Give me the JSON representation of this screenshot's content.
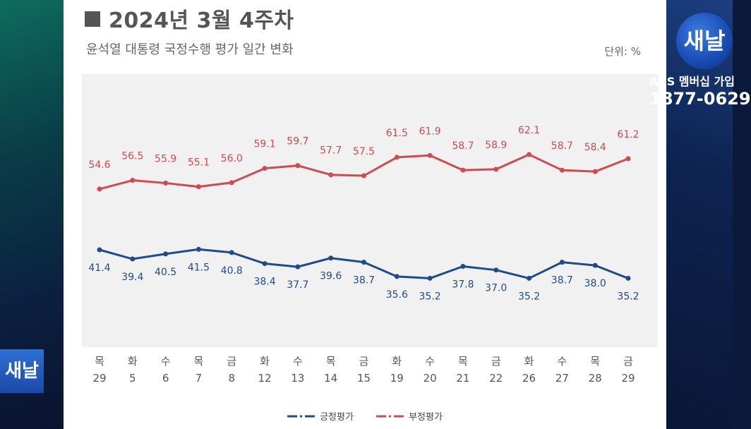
{
  "page": {
    "title": "2024년 3월 4주차",
    "subtitle": "윤석열 대통령 국정수행 평가 일간 변화",
    "unit": "단위: %"
  },
  "branding": {
    "logo_text": "새날",
    "ars_text": "ARS 멤버십 가입",
    "phone": "1877-0629"
  },
  "colors": {
    "positive": "#1f4b8c",
    "negative": "#d04a4f",
    "plot_background": "#f1f1f2"
  },
  "chart_data": {
    "type": "line",
    "title": "2024년 3월 4주차",
    "subtitle": "윤석열 대통령 국정수행 평가 일간 변화",
    "unit": "단위: %",
    "categories": [
      {
        "day": "목",
        "date": "29"
      },
      {
        "day": "화",
        "date": "5"
      },
      {
        "day": "수",
        "date": "6"
      },
      {
        "day": "목",
        "date": "7"
      },
      {
        "day": "금",
        "date": "8"
      },
      {
        "day": "화",
        "date": "12"
      },
      {
        "day": "수",
        "date": "13"
      },
      {
        "day": "목",
        "date": "14"
      },
      {
        "day": "금",
        "date": "15"
      },
      {
        "day": "화",
        "date": "19"
      },
      {
        "day": "수",
        "date": "20"
      },
      {
        "day": "목",
        "date": "21"
      },
      {
        "day": "금",
        "date": "22"
      },
      {
        "day": "화",
        "date": "26"
      },
      {
        "day": "수",
        "date": "27"
      },
      {
        "day": "목",
        "date": "28"
      },
      {
        "day": "금",
        "date": "29"
      }
    ],
    "series": [
      {
        "name": "부정평가",
        "color": "#d04a4f",
        "values": [
          54.6,
          56.5,
          55.9,
          55.1,
          56.0,
          59.1,
          59.7,
          57.7,
          57.5,
          61.5,
          61.9,
          58.7,
          58.9,
          62.1,
          58.7,
          58.4,
          61.2
        ]
      },
      {
        "name": "긍정평가",
        "color": "#1f4b8c",
        "values": [
          41.4,
          39.4,
          40.5,
          41.5,
          40.8,
          38.4,
          37.7,
          39.6,
          38.7,
          35.6,
          35.2,
          37.8,
          37.0,
          35.2,
          38.7,
          38.0,
          35.2
        ]
      }
    ],
    "legend": "bottom-center",
    "grid": false
  }
}
